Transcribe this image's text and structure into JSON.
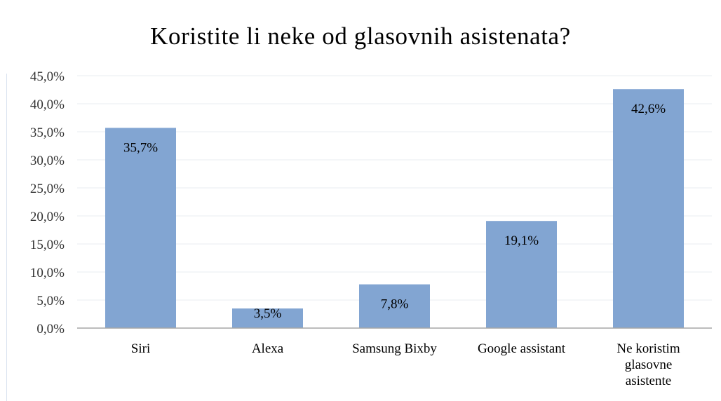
{
  "chart_data": {
    "type": "bar",
    "title": "Koristite li neke od glasovnih asistenata?",
    "categories": [
      "Siri",
      "Alexa",
      "Samsung Bixby",
      "Google assistant",
      "Ne koristim glasovne asistente"
    ],
    "category_lines": [
      [
        "Siri"
      ],
      [
        "Alexa"
      ],
      [
        "Samsung Bixby"
      ],
      [
        "Google assistant"
      ],
      [
        "Ne koristim",
        "glasovne",
        "asistente"
      ]
    ],
    "values": [
      35.7,
      3.5,
      7.8,
      19.1,
      42.6
    ],
    "data_labels": [
      "35,7%",
      "3,5%",
      "7,8%",
      "19,1%",
      "42,6%"
    ],
    "ylim": [
      0,
      45
    ],
    "yticks": [
      0,
      5,
      10,
      15,
      20,
      25,
      30,
      35,
      40,
      45
    ],
    "ytick_labels": [
      "0,0%",
      "5,0%",
      "10,0%",
      "15,0%",
      "20,0%",
      "25,0%",
      "30,0%",
      "35,0%",
      "40,0%",
      "45,0%"
    ],
    "xlabel": "",
    "ylabel": "",
    "grid": true,
    "legend": "none",
    "colors": {
      "bar": "#82a5d2",
      "grid": "#e8ecf2",
      "axis": "#a6a6a6"
    }
  }
}
